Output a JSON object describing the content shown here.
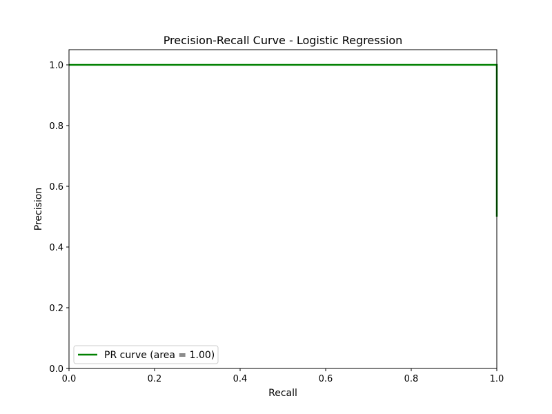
{
  "chart_data": {
    "type": "line",
    "title": "Precision-Recall Curve - Logistic Regression",
    "xlabel": "Recall",
    "ylabel": "Precision",
    "xlim": [
      0.0,
      1.0
    ],
    "ylim": [
      0.0,
      1.05
    ],
    "x_ticks": [
      0.0,
      0.2,
      0.4,
      0.6,
      0.8,
      1.0
    ],
    "x_tick_labels": [
      "0.0",
      "0.2",
      "0.4",
      "0.6",
      "0.8",
      "1.0"
    ],
    "y_ticks": [
      0.0,
      0.2,
      0.4,
      0.6,
      0.8,
      1.0
    ],
    "y_tick_labels": [
      "0.0",
      "0.2",
      "0.4",
      "0.6",
      "0.8",
      "1.0"
    ],
    "grid": false,
    "legend_position": "lower-left",
    "series": [
      {
        "name": "PR curve (area = 1.00)",
        "color": "#008000",
        "x": [
          0.0,
          1.0,
          1.0
        ],
        "y": [
          1.0,
          1.0,
          0.5
        ]
      }
    ]
  }
}
